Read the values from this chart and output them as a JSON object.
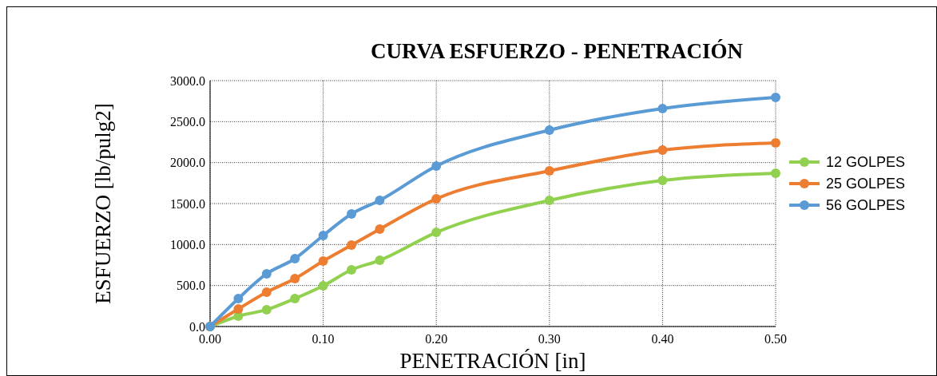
{
  "chart_data": {
    "type": "line",
    "title": "CURVA ESFUERZO - PENETRACIÓN",
    "xlabel": "PENETRACIÓN [in]",
    "ylabel": "ESFUERZO [lb/pulg2]",
    "x": [
      0,
      0.025,
      0.05,
      0.075,
      0.1,
      0.125,
      0.15,
      0.2,
      0.3,
      0.4,
      0.5
    ],
    "series": [
      {
        "name": "12 GOLPES",
        "color": "#92d050",
        "values": [
          0,
          127,
          205,
          341,
          497,
          692,
          808,
          1149,
          1539,
          1782,
          1870
        ]
      },
      {
        "name": "25 GOLPES",
        "color": "#ed7d31",
        "values": [
          0,
          214,
          419,
          584,
          799,
          993,
          1188,
          1558,
          1899,
          2152,
          2240
        ]
      },
      {
        "name": "56 GOLPES",
        "color": "#5b9bd5",
        "values": [
          0,
          341,
          643,
          828,
          1110,
          1373,
          1539,
          1958,
          2396,
          2659,
          2795
        ]
      }
    ],
    "xlim": [
      0,
      0.5
    ],
    "xticks": [
      {
        "value": 0,
        "label": "0.00"
      },
      {
        "value": 0.1,
        "label": "0.10"
      },
      {
        "value": 0.2,
        "label": "0.20"
      },
      {
        "value": 0.3,
        "label": "0.30"
      },
      {
        "value": 0.4,
        "label": "0.40"
      },
      {
        "value": 0.5,
        "label": "0.50"
      }
    ],
    "ylim": [
      0,
      3000
    ],
    "yticks": [
      {
        "value": 0,
        "label": "0.0"
      },
      {
        "value": 500,
        "label": "500.0"
      },
      {
        "value": 1000,
        "label": "1000.0"
      },
      {
        "value": 1500,
        "label": "1500.0"
      },
      {
        "value": 2000,
        "label": "2000.0"
      },
      {
        "value": 2500,
        "label": "2500.0"
      },
      {
        "value": 3000,
        "label": "3000.0"
      }
    ],
    "grid": true,
    "legend": "right",
    "marker": "circle",
    "line_style": "solid"
  }
}
